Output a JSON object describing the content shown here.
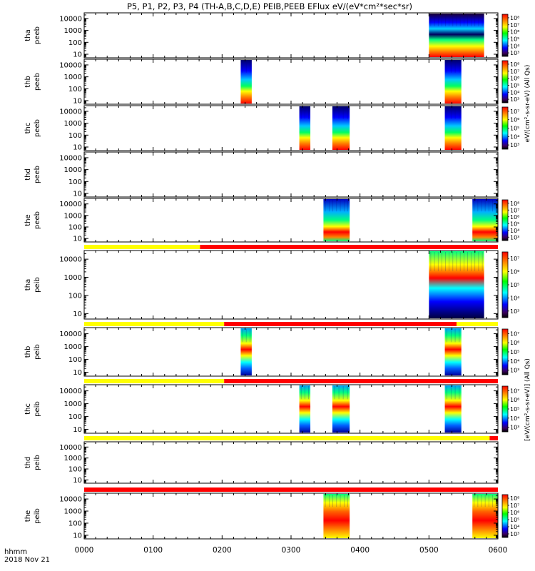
{
  "chart_data": {
    "type": "heatmap",
    "title": "P5, P1, P2, P3, P4 (TH-A,B,C,D,E) PEIB,PEEB EFlux eV/(eV*cm²*sec*sr)",
    "xaxis": {
      "ticks": [
        "0000",
        "0100",
        "0200",
        "0300",
        "0400",
        "0500",
        "0600"
      ],
      "range_hours": [
        0,
        6
      ],
      "label_line1": "hhmm",
      "label_line2": "2018 Nov 21"
    },
    "yaxis_ticks": [
      "10",
      "100",
      "1000",
      "10000"
    ],
    "yaxis_range_eV": [
      5,
      30000
    ],
    "electron_colorbar_label": "eV/(cm²-s-sr-eV) (All Qs)",
    "ion_colorbar_label": "[eV/(cm²-s-sr-eV)] (All Qs)",
    "colors": {
      "bar_yellow": "#ffff00",
      "bar_red": "#ff0000"
    },
    "panels": [
      {
        "label1": "tha",
        "label2": "peeb",
        "cb": [
          "10³",
          "10⁴",
          "10⁵",
          "10⁶",
          "10⁷",
          "10⁸"
        ],
        "blocks": [
          {
            "start": 5.0,
            "end": 5.8,
            "kind": "electron_wide"
          }
        ]
      },
      {
        "label1": "thb",
        "label2": "peeb",
        "cb": [
          "10³",
          "10⁴",
          "10⁵",
          "10⁶",
          "10⁷",
          "10⁸"
        ],
        "blocks": [
          {
            "start": 2.27,
            "end": 2.43,
            "kind": "electron"
          },
          {
            "start": 5.23,
            "end": 5.47,
            "kind": "electron"
          }
        ]
      },
      {
        "label1": "thc",
        "label2": "peeb",
        "cb": [
          "10³",
          "10⁴",
          "10⁵",
          "10⁶",
          "10⁷"
        ],
        "blocks": [
          {
            "start": 3.12,
            "end": 3.28,
            "kind": "electron"
          },
          {
            "start": 3.6,
            "end": 3.85,
            "kind": "electron"
          },
          {
            "start": 5.23,
            "end": 5.47,
            "kind": "electron"
          }
        ]
      },
      {
        "label1": "thd",
        "label2": "peeb",
        "cb": [],
        "blocks": []
      },
      {
        "label1": "the",
        "label2": "peeb",
        "cb": [
          "10³",
          "10⁴",
          "10⁵",
          "10⁶",
          "10⁷",
          "10⁸"
        ],
        "blocks": [
          {
            "start": 3.47,
            "end": 3.85,
            "kind": "electron_low"
          },
          {
            "start": 5.63,
            "end": 6.0,
            "kind": "electron_low"
          }
        ]
      },
      {
        "label1": "tha",
        "label2": "peib",
        "cb": [
          "10³",
          "10⁴",
          "10⁵",
          "10⁶",
          "10⁷"
        ],
        "bar": {
          "split": 1.68,
          "red_end": 6.0
        },
        "blocks": [
          {
            "start": 5.0,
            "end": 5.8,
            "kind": "ion_wide"
          }
        ]
      },
      {
        "label1": "thb",
        "label2": "peib",
        "cb": [
          "10³",
          "10⁴",
          "10⁵",
          "10⁶",
          "10⁷"
        ],
        "bar": {
          "split": 2.03,
          "red_end": 5.4
        },
        "blocks": [
          {
            "start": 2.27,
            "end": 2.43,
            "kind": "ion"
          },
          {
            "start": 5.23,
            "end": 5.47,
            "kind": "ion"
          }
        ]
      },
      {
        "label1": "thc",
        "label2": "peib",
        "cb": [
          "10³",
          "10⁴",
          "10⁵",
          "10⁶",
          "10⁷"
        ],
        "bar": {
          "split": 2.03,
          "red_end": 6.0
        },
        "blocks": [
          {
            "start": 3.12,
            "end": 3.28,
            "kind": "ion"
          },
          {
            "start": 3.6,
            "end": 3.85,
            "kind": "ion"
          },
          {
            "start": 5.23,
            "end": 5.47,
            "kind": "ion"
          }
        ]
      },
      {
        "label1": "thd",
        "label2": "peib",
        "cb": [],
        "bar": {
          "split": 5.88,
          "red_end": 6.0
        },
        "blocks": []
      },
      {
        "label1": "the",
        "label2": "peib",
        "cb": [
          "10³",
          "10⁴",
          "10⁵",
          "10⁶",
          "10⁷",
          "10⁸"
        ],
        "bar": {
          "split": 0.0,
          "red_end": 6.0
        },
        "blocks": [
          {
            "start": 3.47,
            "end": 3.85,
            "kind": "ion_hot"
          },
          {
            "start": 5.63,
            "end": 6.0,
            "kind": "ion_hot"
          }
        ]
      }
    ]
  }
}
